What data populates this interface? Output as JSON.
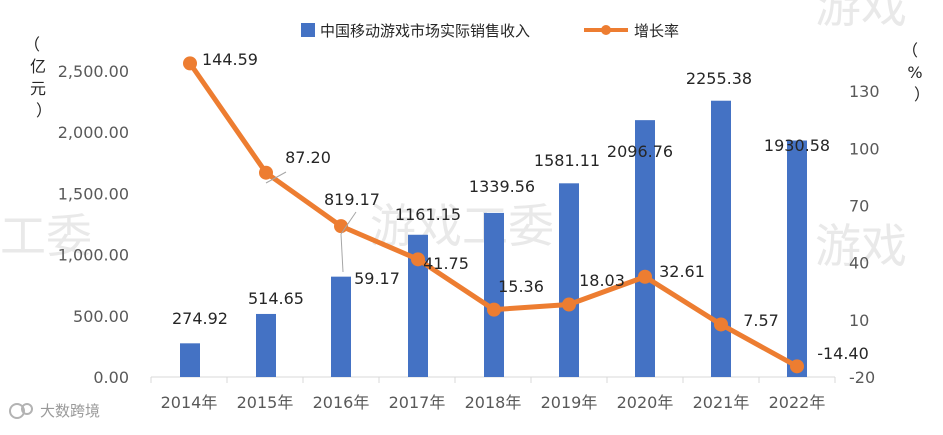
{
  "watermark": {
    "left": "工委",
    "center": "游戏工委",
    "right": "游戏",
    "top_right": "游戏"
  },
  "logo": {
    "text": "大数跨境"
  },
  "chart_data": {
    "type": "bar",
    "categories": [
      "2014年",
      "2015年",
      "2016年",
      "2017年",
      "2018年",
      "2019年",
      "2020年",
      "2021年",
      "2022年"
    ],
    "series": [
      {
        "name": "中国移动游戏市场实际销售收入",
        "type": "bar",
        "axis": "left",
        "color": "#4472c4",
        "values": [
          274.92,
          514.65,
          819.17,
          1161.15,
          1339.56,
          1581.11,
          2096.76,
          2255.38,
          1930.58
        ],
        "labels": [
          "274.92",
          "514.65",
          "819.17",
          "1161.15",
          "1339.56",
          "1581.11",
          "2096.76",
          "2255.38",
          "1930.58"
        ]
      },
      {
        "name": "增长率",
        "type": "line",
        "axis": "right",
        "color": "#ed7d31",
        "values": [
          144.59,
          87.2,
          59.17,
          41.75,
          15.36,
          18.03,
          32.61,
          7.57,
          -14.4
        ],
        "labels": [
          "144.59",
          "87.20",
          "59.17",
          "41.75",
          "15.36",
          "18.03",
          "32.61",
          "7.57",
          "-14.40"
        ]
      }
    ],
    "y_left": {
      "unit_label": [
        "（",
        "亿",
        "元",
        "）"
      ],
      "ylim": [
        0,
        2800
      ],
      "ticks": [
        0,
        500,
        1000,
        1500,
        2000,
        2500
      ],
      "tick_labels": [
        "0.00",
        "500.00",
        "1,000.00",
        "1,500.00",
        "2,000.00",
        "2,500.00"
      ]
    },
    "y_right": {
      "unit_label": [
        "（",
        "%",
        "）"
      ],
      "ylim": [
        -20,
        160
      ],
      "ticks": [
        -20,
        10,
        40,
        70,
        100,
        130
      ],
      "tick_labels": [
        "-20",
        "10",
        "40",
        "70",
        "100",
        "130"
      ]
    },
    "legend_position": "top-center",
    "grid": false
  }
}
